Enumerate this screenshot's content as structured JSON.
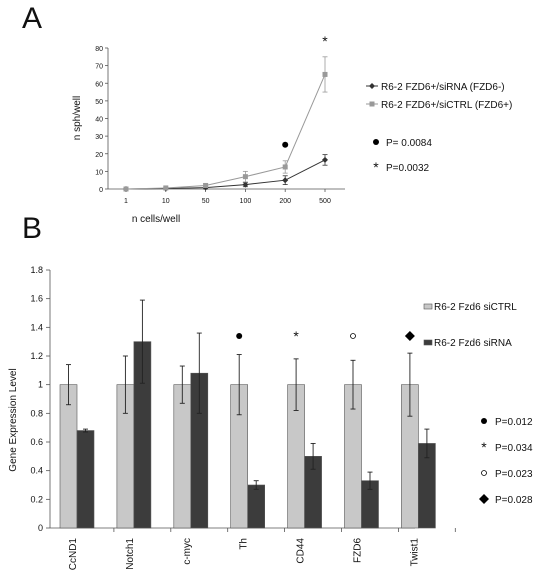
{
  "panels": {
    "a_label": "A",
    "b_label": "B"
  },
  "chart_data": [
    {
      "type": "line",
      "title": "",
      "xlabel": "n cells/well",
      "ylabel": "n sph/well",
      "x": [
        "1",
        "10",
        "50",
        "100",
        "200",
        "500"
      ],
      "ylim": [
        0,
        80
      ],
      "yticks": [
        "0",
        "10",
        "20",
        "30",
        "40",
        "50",
        "60",
        "70",
        "80"
      ],
      "grid": false,
      "legend_position": "right",
      "series": [
        {
          "name": "R6-2 FZD6+/siRNA (FZD6-)",
          "values": [
            0,
            0.3,
            0.8,
            2.5,
            5,
            16.5
          ],
          "errors": [
            0.2,
            0.3,
            0.8,
            1.2,
            2.5,
            3
          ],
          "color": "#333333",
          "marker": "diamond"
        },
        {
          "name": "R6-2 FZD6+/siCTRL (FZD6+)",
          "values": [
            0,
            0.6,
            2,
            7,
            12.5,
            65
          ],
          "errors": [
            0.2,
            0.4,
            1,
            3,
            3.5,
            10
          ],
          "color": "#999999",
          "marker": "square"
        }
      ],
      "annotations": [
        {
          "x": "200",
          "symbol": "●",
          "p_text": "P= 0.0084"
        },
        {
          "x": "500",
          "symbol": "*",
          "p_text": "P=0.0032"
        }
      ]
    },
    {
      "type": "bar",
      "title": "",
      "xlabel": "",
      "ylabel": "Gene Expression Level",
      "categories": [
        "CcND1",
        "Notch1",
        "c-myc",
        "Th",
        "CD44",
        "FZD6",
        "Twist1"
      ],
      "ylim": [
        0,
        1.8
      ],
      "yticks": [
        "0",
        "0.2",
        "0.4",
        "0.6",
        "0.8",
        "1",
        "1.2",
        "1.4",
        "1.6",
        "1.8"
      ],
      "grid": false,
      "legend_position": "right",
      "series": [
        {
          "name": "R6-2 Fzd6  siCTRL",
          "values": [
            1,
            1,
            1,
            1,
            1,
            1,
            1
          ],
          "errors": [
            0.14,
            0.2,
            0.13,
            0.21,
            0.18,
            0.17,
            0.22
          ],
          "color": "#c8c8c8"
        },
        {
          "name": "R6-2 Fzd6  siRNA",
          "values": [
            0.68,
            1.3,
            1.08,
            0.3,
            0.5,
            0.33,
            0.59
          ],
          "errors": [
            0.01,
            0.29,
            0.28,
            0.03,
            0.09,
            0.06,
            0.1
          ],
          "color": "#3c3c3c"
        }
      ],
      "annotations": [
        {
          "category": "Th",
          "symbol": "●",
          "p_text": "P=0.012"
        },
        {
          "category": "CD44",
          "symbol": "*",
          "p_text": "P=0.034"
        },
        {
          "category": "FZD6",
          "symbol": "○",
          "p_text": "P=0.023"
        },
        {
          "category": "Twist1",
          "symbol": "◆",
          "p_text": "P=0.028"
        }
      ]
    }
  ]
}
